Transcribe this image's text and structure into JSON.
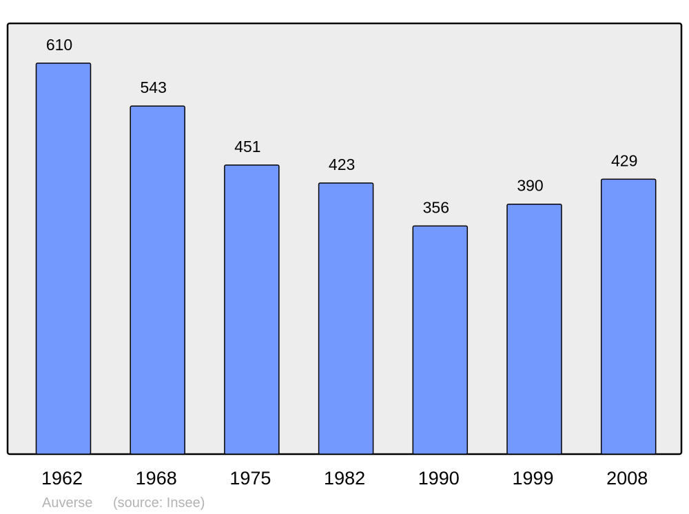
{
  "chart_data": {
    "type": "bar",
    "categories": [
      "1962",
      "1968",
      "1975",
      "1982",
      "1990",
      "1999",
      "2008"
    ],
    "values": [
      610,
      543,
      451,
      423,
      356,
      390,
      429
    ],
    "ylim": [
      0,
      672
    ],
    "grid": false,
    "bar_color": "#7399ff",
    "background_color": "#ededed",
    "caption_place": "Auverse",
    "caption_source": "(source: Insee)"
  }
}
